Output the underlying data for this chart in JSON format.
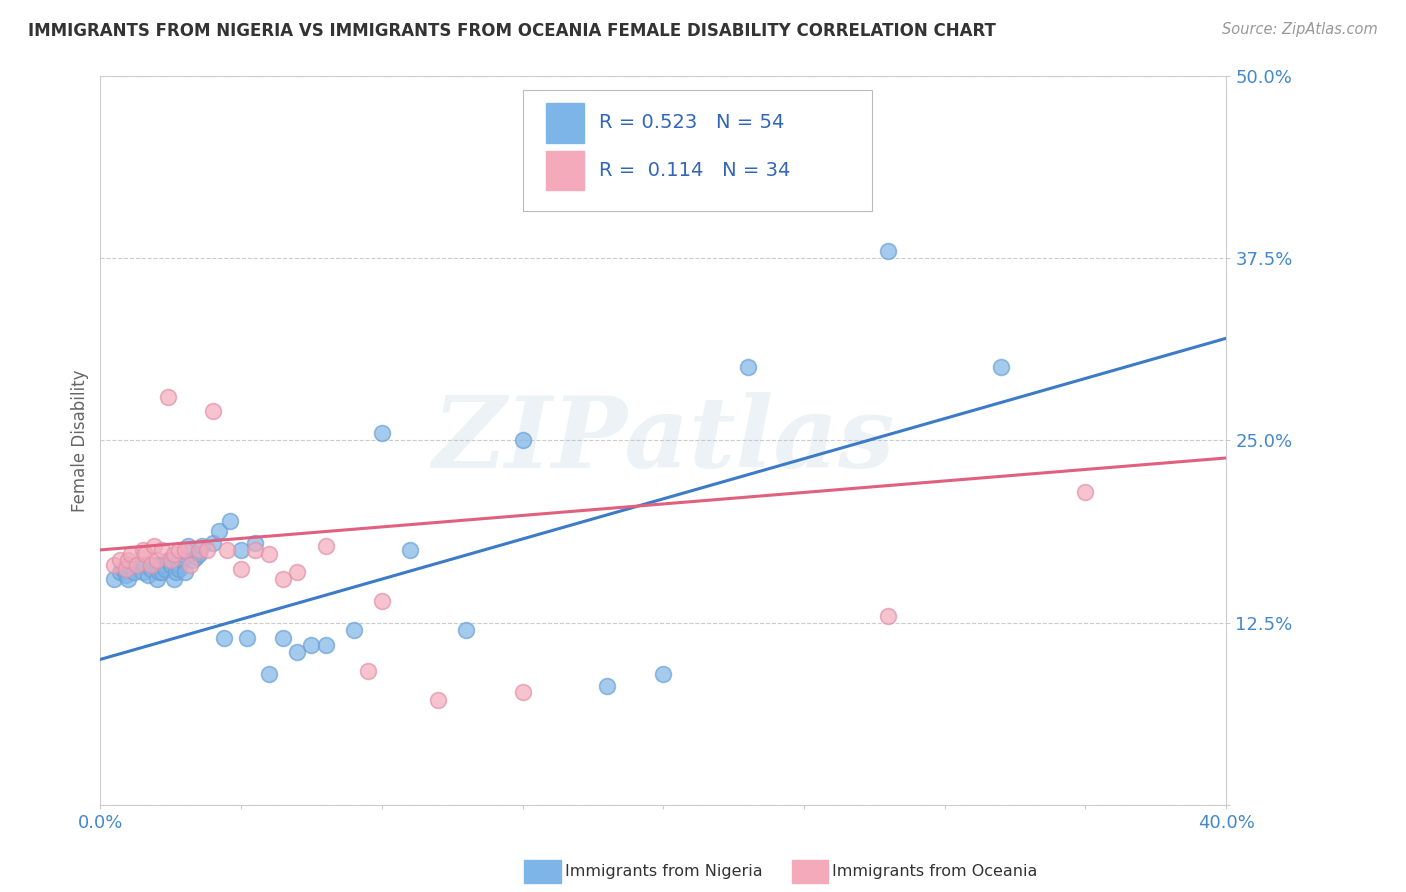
{
  "title": "IMMIGRANTS FROM NIGERIA VS IMMIGRANTS FROM OCEANIA FEMALE DISABILITY CORRELATION CHART",
  "source": "Source: ZipAtlas.com",
  "ylabel": "Female Disability",
  "xlabel": "",
  "xlim": [
    0.0,
    0.4
  ],
  "ylim": [
    0.0,
    0.5
  ],
  "xticks": [
    0.0,
    0.05,
    0.1,
    0.15,
    0.2,
    0.25,
    0.3,
    0.35,
    0.4
  ],
  "xticklabels": [
    "0.0%",
    "",
    "",
    "",
    "",
    "",
    "",
    "",
    "40.0%"
  ],
  "yticks": [
    0.0,
    0.125,
    0.25,
    0.375,
    0.5
  ],
  "yticklabels": [
    "",
    "12.5%",
    "25.0%",
    "37.5%",
    "50.0%"
  ],
  "nigeria_color": "#7EB5E8",
  "nigeria_edge_color": "#6AA0D4",
  "oceania_color": "#F4AABB",
  "oceania_edge_color": "#E090A8",
  "nigeria_line_color": "#3B7BC8",
  "oceania_line_color": "#E06080",
  "nigeria_R": 0.523,
  "nigeria_N": 54,
  "oceania_R": 0.114,
  "oceania_N": 34,
  "nigeria_scatter_x": [
    0.005,
    0.007,
    0.008,
    0.009,
    0.01,
    0.01,
    0.012,
    0.013,
    0.015,
    0.016,
    0.017,
    0.018,
    0.019,
    0.02,
    0.02,
    0.021,
    0.022,
    0.022,
    0.023,
    0.024,
    0.025,
    0.026,
    0.027,
    0.028,
    0.028,
    0.029,
    0.03,
    0.031,
    0.033,
    0.034,
    0.035,
    0.036,
    0.04,
    0.042,
    0.044,
    0.046,
    0.05,
    0.052,
    0.055,
    0.06,
    0.065,
    0.07,
    0.075,
    0.08,
    0.09,
    0.1,
    0.11,
    0.13,
    0.15,
    0.18,
    0.2,
    0.23,
    0.28,
    0.32
  ],
  "nigeria_scatter_y": [
    0.155,
    0.16,
    0.162,
    0.158,
    0.155,
    0.165,
    0.16,
    0.165,
    0.16,
    0.165,
    0.158,
    0.162,
    0.165,
    0.155,
    0.165,
    0.16,
    0.16,
    0.165,
    0.162,
    0.168,
    0.165,
    0.155,
    0.16,
    0.165,
    0.162,
    0.168,
    0.16,
    0.178,
    0.168,
    0.17,
    0.172,
    0.178,
    0.18,
    0.188,
    0.115,
    0.195,
    0.175,
    0.115,
    0.18,
    0.09,
    0.115,
    0.105,
    0.11,
    0.11,
    0.12,
    0.255,
    0.175,
    0.12,
    0.25,
    0.082,
    0.09,
    0.3,
    0.38,
    0.3
  ],
  "oceania_scatter_x": [
    0.005,
    0.007,
    0.009,
    0.01,
    0.011,
    0.013,
    0.015,
    0.016,
    0.018,
    0.019,
    0.02,
    0.022,
    0.024,
    0.025,
    0.026,
    0.028,
    0.03,
    0.032,
    0.035,
    0.038,
    0.04,
    0.045,
    0.05,
    0.055,
    0.06,
    0.065,
    0.07,
    0.08,
    0.095,
    0.1,
    0.12,
    0.15,
    0.28,
    0.35
  ],
  "oceania_scatter_y": [
    0.165,
    0.168,
    0.162,
    0.168,
    0.172,
    0.165,
    0.175,
    0.172,
    0.165,
    0.178,
    0.168,
    0.175,
    0.28,
    0.168,
    0.172,
    0.175,
    0.175,
    0.165,
    0.175,
    0.175,
    0.27,
    0.175,
    0.162,
    0.175,
    0.172,
    0.155,
    0.16,
    0.178,
    0.092,
    0.14,
    0.072,
    0.078,
    0.13,
    0.215
  ],
  "nigeria_line_x0": 0.0,
  "nigeria_line_y0": 0.1,
  "nigeria_line_x1": 0.4,
  "nigeria_line_y1": 0.32,
  "oceania_line_x0": 0.0,
  "oceania_line_y0": 0.175,
  "oceania_line_x1": 0.4,
  "oceania_line_y1": 0.238,
  "watermark_text": "ZIPatlas",
  "background_color": "#ffffff",
  "grid_color": "#cccccc"
}
